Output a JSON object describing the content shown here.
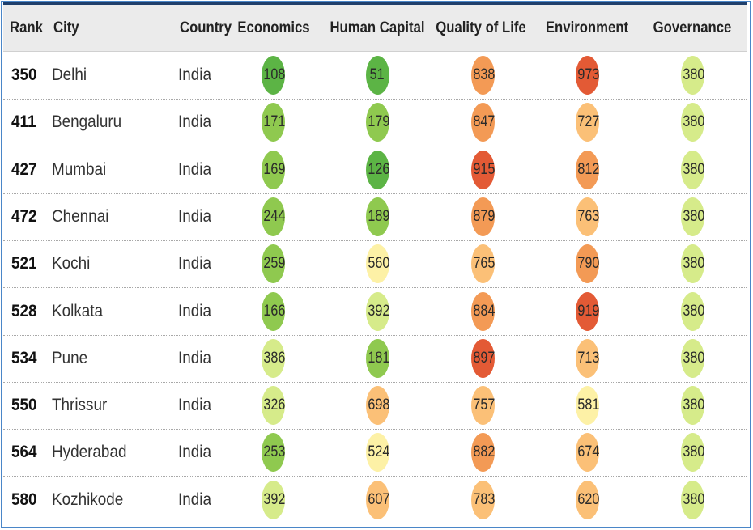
{
  "chart_data": {
    "type": "table",
    "columns": [
      "Rank",
      "City",
      "Country",
      "Economics",
      "Human Capital",
      "Quality of Life",
      "Environment",
      "Governance"
    ],
    "rows": [
      {
        "rank": "350",
        "city": "Delhi",
        "country": "India",
        "scores": [
          108,
          51,
          838,
          973,
          380
        ]
      },
      {
        "rank": "411",
        "city": "Bengaluru",
        "country": "India",
        "scores": [
          171,
          179,
          847,
          727,
          380
        ]
      },
      {
        "rank": "427",
        "city": "Mumbai",
        "country": "India",
        "scores": [
          169,
          126,
          915,
          812,
          380
        ]
      },
      {
        "rank": "472",
        "city": "Chennai",
        "country": "India",
        "scores": [
          244,
          189,
          879,
          763,
          380
        ]
      },
      {
        "rank": "521",
        "city": "Kochi",
        "country": "India",
        "scores": [
          259,
          560,
          765,
          790,
          380
        ]
      },
      {
        "rank": "528",
        "city": "Kolkata",
        "country": "India",
        "scores": [
          166,
          392,
          884,
          919,
          380
        ]
      },
      {
        "rank": "534",
        "city": "Pune",
        "country": "India",
        "scores": [
          386,
          181,
          897,
          713,
          380
        ]
      },
      {
        "rank": "550",
        "city": "Thrissur",
        "country": "India",
        "scores": [
          326,
          698,
          757,
          581,
          380
        ]
      },
      {
        "rank": "564",
        "city": "Hyderabad",
        "country": "India",
        "scores": [
          253,
          524,
          882,
          674,
          380
        ]
      },
      {
        "rank": "580",
        "city": "Kozhikode",
        "country": "India",
        "scores": [
          392,
          607,
          783,
          620,
          380
        ]
      }
    ],
    "color_scale": [
      "#5cb445",
      "#8fc94f",
      "#d6eb8a",
      "#fdf1a6",
      "#fbc077",
      "#f39a55",
      "#e35a35"
    ]
  }
}
